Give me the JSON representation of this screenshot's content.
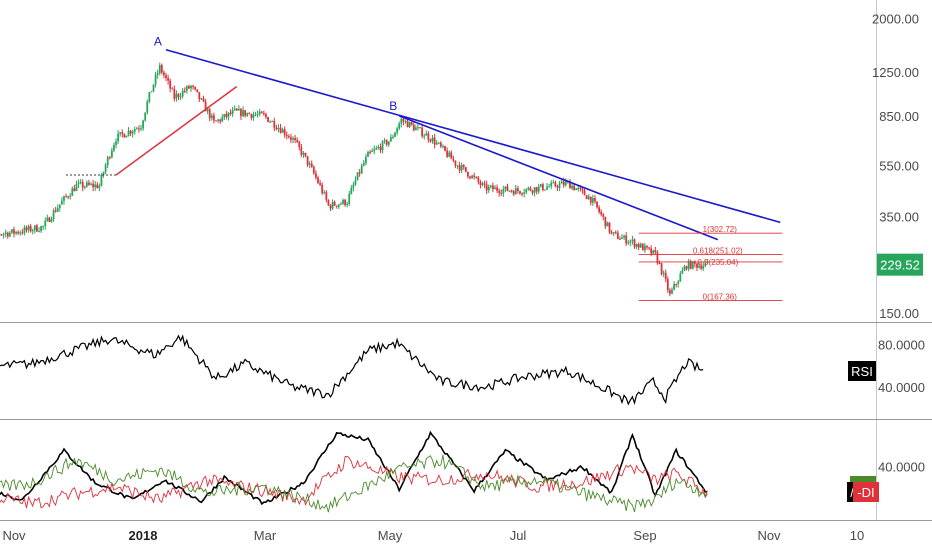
{
  "chart_data": [
    {
      "type": "line",
      "panel": "price",
      "subtype": "candlestick",
      "scale": "log",
      "x_ticks": [
        "Nov",
        "2018",
        "Mar",
        "May",
        "Jul",
        "Sep",
        "Nov",
        "10"
      ],
      "y_ticks": [
        150,
        350,
        550,
        850,
        1250,
        2000
      ],
      "y_tick_labels": [
        "150.00",
        "350.00",
        "550.00",
        "850.00",
        "1250.00",
        "2000.00"
      ],
      "ylim": [
        130,
        2300
      ],
      "grid": false,
      "colors": {
        "up": "#26a65b",
        "down": "#e0303a",
        "trendline": "#1a1acc",
        "fib": "#e0303a"
      },
      "last_price": "229.52",
      "last_price_color": "#26a65b",
      "series": [
        {
          "dates": [
            "2017-10-15",
            "2017-11-01",
            "2017-11-15",
            "2017-12-01",
            "2017-12-12",
            "2017-12-20",
            "2018-01-01",
            "2018-01-10",
            "2018-01-17",
            "2018-01-25",
            "2018-02-05",
            "2018-02-15",
            "2018-03-01",
            "2018-03-15",
            "2018-04-01",
            "2018-04-10",
            "2018-04-20",
            "2018-05-01",
            "2018-05-06",
            "2018-05-20",
            "2018-06-01",
            "2018-06-15",
            "2018-07-01",
            "2018-07-15",
            "2018-07-25",
            "2018-08-05",
            "2018-08-15",
            "2018-08-25",
            "2018-09-05",
            "2018-09-12",
            "2018-09-20",
            "2018-09-30"
          ],
          "close": [
            297,
            305,
            320,
            460,
            460,
            700,
            780,
            1300,
            1000,
            1100,
            800,
            880,
            850,
            690,
            385,
            400,
            600,
            690,
            820,
            700,
            560,
            450,
            440,
            455,
            470,
            410,
            300,
            280,
            250,
            175,
            229,
            229
          ]
        }
      ],
      "annotations": [
        {
          "label": "A",
          "date": "2018-01-12",
          "value": 1500
        },
        {
          "label": "B",
          "date": "2018-05-05",
          "value": 850
        }
      ],
      "trendlines": [
        {
          "from": {
            "date": "2018-01-13",
            "value": 1520
          },
          "to": {
            "date": "2018-11-04",
            "value": 333
          }
        },
        {
          "from": {
            "date": "2018-05-05",
            "value": 850
          },
          "to": {
            "date": "2018-10-05",
            "value": 286
          }
        }
      ],
      "support_line": {
        "start": "2017-11-26",
        "end": "2017-12-20",
        "value": 505
      },
      "fib_levels": [
        {
          "label": "1(302.72)",
          "value": 302.72
        },
        {
          "label": "0.618(251.02)",
          "value": 251.02
        },
        {
          "label": "0.5(235.04)",
          "value": 235.04
        },
        {
          "label": "0(167.36)",
          "value": 167.36
        }
      ]
    },
    {
      "type": "line",
      "panel": "rsi",
      "label": "RSI",
      "y_ticks": [
        40,
        80
      ],
      "y_tick_labels": [
        "40.0000",
        "80.0000"
      ],
      "ylim": [
        10,
        100
      ],
      "series": [
        {
          "name": "RSI",
          "color": "#000000",
          "dates": [
            "2017-10-15",
            "2017-11-10",
            "2017-12-01",
            "2017-12-17",
            "2018-01-08",
            "2018-01-20",
            "2018-02-06",
            "2018-02-20",
            "2018-03-15",
            "2018-04-01",
            "2018-04-20",
            "2018-05-04",
            "2018-05-25",
            "2018-06-15",
            "2018-07-05",
            "2018-07-25",
            "2018-08-12",
            "2018-08-24",
            "2018-09-04",
            "2018-09-10",
            "2018-09-20",
            "2018-09-28"
          ],
          "values": [
            58,
            62,
            75,
            85,
            70,
            87,
            48,
            62,
            40,
            33,
            74,
            81,
            45,
            40,
            50,
            55,
            38,
            25,
            45,
            30,
            63,
            55
          ]
        }
      ]
    },
    {
      "type": "line",
      "panel": "dmi",
      "y_ticks": [
        40
      ],
      "y_tick_labels": [
        "40.0000"
      ],
      "ylim": [
        0,
        75
      ],
      "series": [
        {
          "name": "",
          "color": "#000000",
          "dates": [
            "2017-10-15",
            "2017-11-05",
            "2017-11-25",
            "2017-12-10",
            "2017-12-28",
            "2018-01-12",
            "2018-01-30",
            "2018-02-10",
            "2018-03-01",
            "2018-03-20",
            "2018-04-05",
            "2018-04-20",
            "2018-05-05",
            "2018-05-20",
            "2018-06-10",
            "2018-06-25",
            "2018-07-15",
            "2018-08-01",
            "2018-08-15",
            "2018-08-25",
            "2018-09-05",
            "2018-09-15",
            "2018-09-30"
          ],
          "values": [
            25,
            15,
            52,
            28,
            15,
            30,
            14,
            32,
            12,
            28,
            65,
            60,
            23,
            65,
            22,
            52,
            30,
            40,
            20,
            64,
            18,
            52,
            20
          ]
        },
        {
          "name": "",
          "color": "#e0303a",
          "dates": [
            "2017-10-15",
            "2017-11-10",
            "2017-12-01",
            "2017-12-20",
            "2018-01-10",
            "2018-02-01",
            "2018-03-01",
            "2018-03-20",
            "2018-04-10",
            "2018-05-05",
            "2018-05-25",
            "2018-06-15",
            "2018-07-10",
            "2018-08-01",
            "2018-08-24",
            "2018-09-05",
            "2018-09-15",
            "2018-09-30"
          ],
          "values": [
            20,
            12,
            20,
            25,
            15,
            30,
            22,
            15,
            45,
            32,
            30,
            35,
            25,
            28,
            40,
            30,
            35,
            20
          ]
        },
        {
          "name": "",
          "color": "#4a8a2a",
          "dates": [
            "2017-10-15",
            "2017-11-10",
            "2017-12-01",
            "2017-12-20",
            "2018-01-10",
            "2018-02-01",
            "2018-03-01",
            "2018-04-01",
            "2018-05-05",
            "2018-05-25",
            "2018-06-15",
            "2018-07-10",
            "2018-08-01",
            "2018-08-24",
            "2018-09-05",
            "2018-09-15",
            "2018-09-30"
          ],
          "values": [
            22,
            28,
            45,
            30,
            38,
            20,
            25,
            10,
            38,
            45,
            25,
            30,
            20,
            10,
            15,
            30,
            20
          ]
        }
      ],
      "legend_badges": [
        {
          "text": "/",
          "bg": "#000000",
          "fg": "#ffffff"
        },
        {
          "text": "-DI",
          "bg": "#e0303a",
          "fg": "#ffffff"
        },
        {
          "text": "",
          "bg": "#4a8a2a",
          "fg": "#ffffff"
        }
      ]
    }
  ]
}
